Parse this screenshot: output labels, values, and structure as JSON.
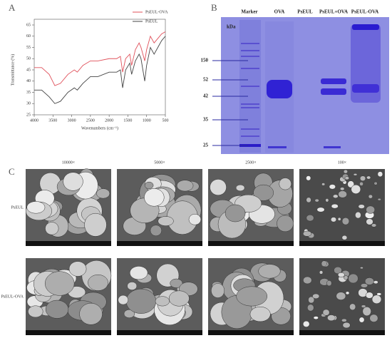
{
  "chart_data": {
    "type": "line",
    "label": "A",
    "x_label": "Wavenumbers (cm⁻¹)",
    "y_label": "Transmittance (%)",
    "x": [
      4000,
      3800,
      3600,
      3450,
      3300,
      3100,
      2930,
      2850,
      2700,
      2500,
      2300,
      2000,
      1800,
      1700,
      1640,
      1560,
      1450,
      1400,
      1300,
      1200,
      1150,
      1050,
      1000,
      900,
      800,
      700,
      600,
      500
    ],
    "series": [
      {
        "name": "PsEUL-OVA",
        "color": "#e0505a",
        "values": [
          46,
          46,
          43,
          38,
          39,
          43,
          45,
          44,
          47,
          49,
          49,
          50,
          50,
          51,
          44,
          50,
          52,
          47,
          54,
          57,
          55,
          49,
          54,
          60,
          57,
          59,
          61,
          62
        ]
      },
      {
        "name": "PsEUL",
        "color": "#444444",
        "values": [
          36,
          36,
          33,
          30,
          31,
          35,
          37,
          36,
          39,
          42,
          42,
          44,
          44,
          45,
          37,
          45,
          48,
          43,
          49,
          52,
          50,
          40,
          47,
          55,
          52,
          55,
          58,
          60
        ]
      }
    ],
    "xlim": [
      4000,
      500
    ],
    "xticks": [
      4000,
      3500,
      3000,
      2500,
      2000,
      1500,
      1000,
      500
    ],
    "ylim": [
      25,
      65
    ],
    "yticks": [
      25,
      30,
      35,
      40,
      45,
      50,
      55,
      60,
      65
    ],
    "legend": "top-right"
  },
  "panel_b": {
    "label": "B",
    "lanes": [
      "Marker",
      "OVA",
      "PsEUL",
      "PsEUL+OVA",
      "PsEUL-OVA"
    ],
    "unit": "kDa",
    "markers": [
      150,
      52,
      42,
      35,
      25
    ]
  },
  "panel_c": {
    "label": "C",
    "magnifications": [
      "10000×",
      "5000×",
      "2500×",
      "100×"
    ],
    "samples": [
      "PsEUL",
      "PsEUL-OVA"
    ]
  }
}
